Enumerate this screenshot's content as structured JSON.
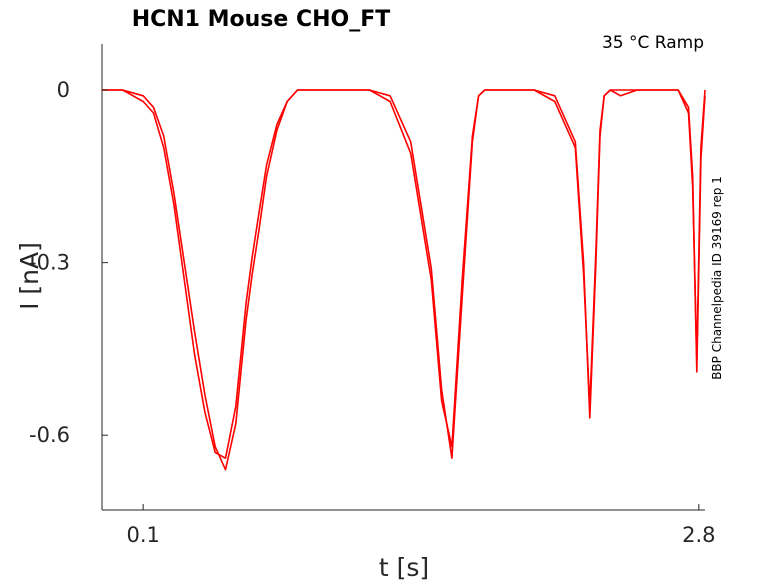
{
  "chart_data": {
    "type": "line",
    "title": "HCN1  Mouse  CHO_FT",
    "annotation": "35 °C  Ramp",
    "side_label": "BBP Channelpedia ID 39169 rep 1",
    "xlabel": "t [s]",
    "ylabel": "I [nA]",
    "xlim": [
      -0.1,
      2.83
    ],
    "ylim": [
      -0.73,
      0.08
    ],
    "x_ticks": [
      {
        "value": 0.1,
        "label": "0.1"
      },
      {
        "value": 2.8,
        "label": "2.8"
      }
    ],
    "y_ticks": [
      {
        "value": 0,
        "label": "0"
      },
      {
        "value": -0.3,
        "label": "-0.3"
      },
      {
        "value": -0.6,
        "label": "-0.6"
      }
    ],
    "grid": false,
    "series_color": "#ff0000",
    "series": [
      {
        "x": [
          -0.1,
          0.0,
          0.1,
          0.15,
          0.2,
          0.25,
          0.3,
          0.35,
          0.4,
          0.45,
          0.5,
          0.55,
          0.6,
          0.63,
          0.66,
          0.7,
          0.75,
          0.8,
          0.85,
          0.9,
          0.95,
          1.0,
          1.05,
          1.1,
          1.15,
          1.2,
          1.3,
          1.4,
          1.5,
          1.55,
          1.6,
          1.65,
          1.7,
          1.73,
          1.76,
          1.8,
          1.85,
          1.9,
          2.0,
          2.1,
          2.2,
          2.24,
          2.27,
          2.3,
          2.32,
          2.34,
          2.37,
          2.42,
          2.5,
          2.6,
          2.7,
          2.75,
          2.77,
          2.79,
          2.81,
          2.83
        ],
        "y": [
          0.0,
          0.0,
          -0.01,
          -0.03,
          -0.08,
          -0.18,
          -0.3,
          -0.42,
          -0.53,
          -0.62,
          -0.66,
          -0.58,
          -0.4,
          -0.32,
          -0.25,
          -0.15,
          -0.07,
          -0.02,
          0.0,
          0.0,
          0.0,
          0.0,
          0.0,
          0.0,
          0.0,
          0.0,
          -0.01,
          -0.09,
          -0.31,
          -0.52,
          -0.64,
          -0.36,
          -0.09,
          -0.01,
          0.0,
          0.0,
          0.0,
          0.0,
          0.0,
          -0.01,
          -0.09,
          -0.3,
          -0.57,
          -0.3,
          -0.08,
          -0.01,
          0.0,
          0.0,
          0.0,
          0.0,
          0.0,
          -0.03,
          -0.15,
          -0.49,
          -0.12,
          -0.01
        ]
      },
      {
        "x": [
          -0.1,
          0.0,
          0.1,
          0.15,
          0.2,
          0.25,
          0.3,
          0.35,
          0.4,
          0.45,
          0.5,
          0.55,
          0.6,
          0.63,
          0.66,
          0.7,
          0.75,
          0.8,
          0.85,
          0.9,
          0.95,
          1.0,
          1.05,
          1.1,
          1.15,
          1.2,
          1.3,
          1.4,
          1.5,
          1.55,
          1.6,
          1.65,
          1.7,
          1.73,
          1.76,
          1.8,
          1.85,
          1.9,
          2.0,
          2.1,
          2.2,
          2.24,
          2.27,
          2.3,
          2.32,
          2.34,
          2.37,
          2.42,
          2.5,
          2.6,
          2.7,
          2.75,
          2.77,
          2.79,
          2.81,
          2.83
        ],
        "y": [
          0.0,
          0.0,
          -0.02,
          -0.04,
          -0.1,
          -0.2,
          -0.33,
          -0.46,
          -0.56,
          -0.63,
          -0.64,
          -0.55,
          -0.37,
          -0.29,
          -0.22,
          -0.13,
          -0.06,
          -0.02,
          0.0,
          0.0,
          0.0,
          0.0,
          0.0,
          0.0,
          0.0,
          0.0,
          -0.02,
          -0.11,
          -0.33,
          -0.54,
          -0.62,
          -0.33,
          -0.08,
          -0.01,
          0.0,
          0.0,
          0.0,
          0.0,
          0.0,
          -0.02,
          -0.1,
          -0.32,
          -0.55,
          -0.28,
          -0.07,
          -0.01,
          0.0,
          -0.01,
          0.0,
          0.0,
          0.0,
          -0.04,
          -0.17,
          -0.47,
          -0.1,
          0.0
        ]
      }
    ]
  }
}
